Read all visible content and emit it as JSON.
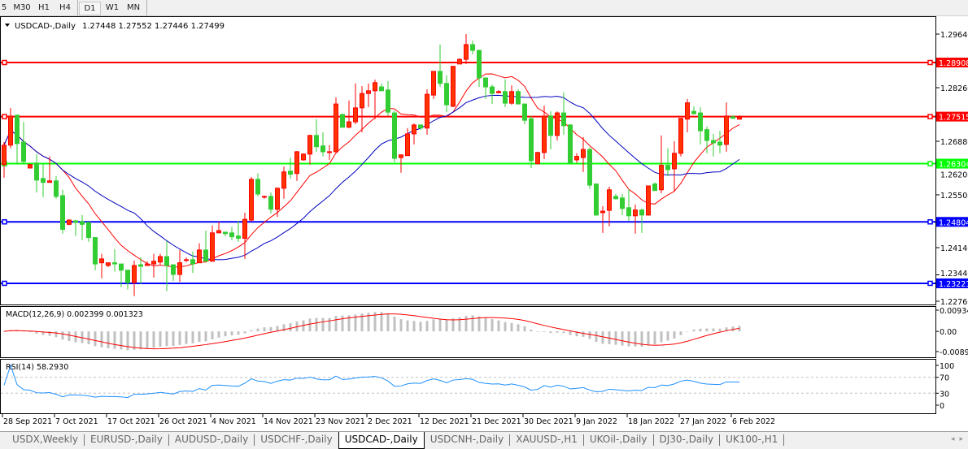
{
  "toolbar": {
    "timeframes": [
      {
        "label": "5"
      },
      {
        "label": "M30"
      },
      {
        "label": "H1"
      },
      {
        "label": "H4"
      },
      {
        "label": "D1",
        "active": true
      },
      {
        "label": "W1"
      },
      {
        "label": "MN"
      }
    ]
  },
  "chart": {
    "symbol_label": "USDCAD-,Daily",
    "ohlc_label": "1.27448 1.27552 1.27446 1.27499",
    "bull_color": "#ff3300",
    "bear_color": "#32cd32",
    "price_ticks": [
      "1.29640",
      "1.28260",
      "1.26880",
      "1.26200",
      "1.25500",
      "1.24140",
      "1.23440",
      "1.22760"
    ],
    "price_tick_values": [
      1.2964,
      1.2826,
      1.2688,
      1.262,
      1.255,
      1.2414,
      1.2344,
      1.2276
    ],
    "price_range": [
      1.2276,
      1.2964
    ],
    "levels": [
      {
        "label": "1.28908",
        "value": 1.28908,
        "color": "#ff0000"
      },
      {
        "label": "1.27515",
        "value": 1.27515,
        "color": "#ff0000"
      },
      {
        "label": "1.26304",
        "value": 1.26304,
        "color": "#00ff00"
      },
      {
        "label": "1.24804",
        "value": 1.24804,
        "color": "#0000ff"
      },
      {
        "label": "1.23221",
        "value": 1.23221,
        "color": "#0000ff"
      }
    ],
    "ma_colors": {
      "fast": "#ff0000",
      "slow": "#0000c0"
    },
    "date_labels": [
      "28 Sep 2021",
      "7 Oct 2021",
      "17 Oct 2021",
      "26 Oct 2021",
      "4 Nov 2021",
      "14 Nov 2021",
      "23 Nov 2021",
      "2 Dec 2021",
      "12 Dec 2021",
      "21 Dec 2021",
      "30 Dec 2021",
      "9 Jan 2022",
      "18 Jan 2022",
      "27 Jan 2022",
      "6 Feb 2022"
    ],
    "candles_ohlc": [
      [
        1.2628,
        1.2686,
        1.2594,
        1.2678
      ],
      [
        1.2678,
        1.2774,
        1.267,
        1.2753
      ],
      [
        1.2755,
        1.2757,
        1.2628,
        1.2682
      ],
      [
        1.2686,
        1.2738,
        1.2628,
        1.2636
      ],
      [
        1.2619,
        1.2628,
        1.2619,
        1.2628
      ],
      [
        1.2632,
        1.2655,
        1.2556,
        1.2588
      ],
      [
        1.2592,
        1.263,
        1.2544,
        1.2582
      ],
      [
        1.2582,
        1.2649,
        1.2582,
        1.2586
      ],
      [
        1.2586,
        1.2598,
        1.254,
        1.2546
      ],
      [
        1.2548,
        1.2563,
        1.245,
        1.2461
      ],
      [
        1.2474,
        1.2487,
        1.2472,
        1.2485
      ],
      [
        1.2483,
        1.2485,
        1.2444,
        1.2479
      ],
      [
        1.2481,
        1.2498,
        1.2433,
        1.2474
      ],
      [
        1.2479,
        1.2479,
        1.2429,
        1.244
      ],
      [
        1.244,
        1.244,
        1.2356,
        1.2372
      ],
      [
        1.2375,
        1.2398,
        1.2335,
        1.2385
      ],
      [
        1.2368,
        1.2375,
        1.2364,
        1.2375
      ],
      [
        1.2375,
        1.241,
        1.2352,
        1.2372
      ],
      [
        1.2372,
        1.2372,
        1.2312,
        1.2356
      ],
      [
        1.2356,
        1.2356,
        1.2306,
        1.2324
      ],
      [
        1.2324,
        1.2381,
        1.2289,
        1.2368
      ],
      [
        1.237,
        1.2389,
        1.232,
        1.2366
      ],
      [
        1.2368,
        1.2379,
        1.2368,
        1.2372
      ],
      [
        1.2372,
        1.2398,
        1.2337,
        1.2379
      ],
      [
        1.2377,
        1.2398,
        1.237,
        1.2391
      ],
      [
        1.2391,
        1.2431,
        1.2302,
        1.2368
      ],
      [
        1.237,
        1.237,
        1.2328,
        1.2345
      ],
      [
        1.2345,
        1.2408,
        1.2326,
        1.2375
      ],
      [
        1.2381,
        1.2389,
        1.2377,
        1.2383
      ],
      [
        1.2383,
        1.2404,
        1.2349,
        1.2372
      ],
      [
        1.2375,
        1.2425,
        1.2375,
        1.2408
      ],
      [
        1.2408,
        1.2458,
        1.2379,
        1.2379
      ],
      [
        1.2379,
        1.2471,
        1.2379,
        1.2452
      ],
      [
        1.2452,
        1.2481,
        1.2452,
        1.2458
      ],
      [
        1.2454,
        1.2454,
        1.2444,
        1.245
      ],
      [
        1.2452,
        1.2467,
        1.2433,
        1.2442
      ],
      [
        1.2444,
        1.2483,
        1.2429,
        1.2438
      ],
      [
        1.2438,
        1.2504,
        1.2385,
        1.2487
      ],
      [
        1.2485,
        1.2596,
        1.2481,
        1.259
      ],
      [
        1.259,
        1.2605,
        1.2546,
        1.2552
      ],
      [
        1.2544,
        1.2548,
        1.254,
        1.2546
      ],
      [
        1.2546,
        1.2556,
        1.2502,
        1.2513
      ],
      [
        1.2513,
        1.2569,
        1.2493,
        1.2567
      ],
      [
        1.2567,
        1.2623,
        1.254,
        1.2609
      ],
      [
        1.2611,
        1.2646,
        1.2592,
        1.2603
      ],
      [
        1.2605,
        1.2663,
        1.2586,
        1.2661
      ],
      [
        1.264,
        1.2657,
        1.2638,
        1.2655
      ],
      [
        1.2655,
        1.2705,
        1.2628,
        1.2703
      ],
      [
        1.2703,
        1.2745,
        1.2661,
        1.2674
      ],
      [
        1.2676,
        1.2711,
        1.2649,
        1.2661
      ],
      [
        1.2659,
        1.2678,
        1.264,
        1.2661
      ],
      [
        1.2661,
        1.2801,
        1.2659,
        1.2784
      ],
      [
        1.2757,
        1.2759,
        1.2724,
        1.2724
      ],
      [
        1.2724,
        1.2793,
        1.2722,
        1.2738
      ],
      [
        1.2738,
        1.2837,
        1.2732,
        1.2774
      ],
      [
        1.2774,
        1.283,
        1.2711,
        1.2811
      ],
      [
        1.2811,
        1.2837,
        1.2776,
        1.2818
      ],
      [
        1.2818,
        1.2847,
        1.2745,
        1.2839
      ],
      [
        1.2828,
        1.2837,
        1.2818,
        1.2818
      ],
      [
        1.282,
        1.2843,
        1.2753,
        1.2763
      ],
      [
        1.2761,
        1.2767,
        1.2634,
        1.2644
      ],
      [
        1.2646,
        1.2653,
        1.2607,
        1.2653
      ],
      [
        1.2651,
        1.2722,
        1.2651,
        1.2707
      ],
      [
        1.2707,
        1.2734,
        1.268,
        1.273
      ],
      [
        1.273,
        1.273,
        1.2718,
        1.2722
      ],
      [
        1.2722,
        1.2822,
        1.2705,
        1.2809
      ],
      [
        1.2807,
        1.2868,
        1.2797,
        1.2868
      ],
      [
        1.2868,
        1.2937,
        1.2828,
        1.2837
      ],
      [
        1.2837,
        1.2858,
        1.2763,
        1.2782
      ],
      [
        1.2778,
        1.2881,
        1.2776,
        1.2881
      ],
      [
        1.2887,
        1.2902,
        1.2887,
        1.2899
      ],
      [
        1.2899,
        1.2964,
        1.2887,
        1.2937
      ],
      [
        1.2937,
        1.2947,
        1.2912,
        1.2922
      ],
      [
        1.2922,
        1.2924,
        1.2828,
        1.2851
      ],
      [
        1.2851,
        1.2851,
        1.2797,
        1.2828
      ],
      [
        1.2828,
        1.2834,
        1.2784,
        1.2811
      ],
      [
        1.2813,
        1.282,
        1.2811,
        1.2816
      ],
      [
        1.2816,
        1.2847,
        1.2776,
        1.2786
      ],
      [
        1.2786,
        1.2832,
        1.2782,
        1.2816
      ],
      [
        1.2816,
        1.2822,
        1.2784,
        1.2784
      ],
      [
        1.2784,
        1.2784,
        1.2732,
        1.2742
      ],
      [
        1.2746,
        1.2753,
        1.2619,
        1.2638
      ],
      [
        1.263,
        1.2661,
        1.2628,
        1.2659
      ],
      [
        1.2659,
        1.278,
        1.2642,
        1.2753
      ],
      [
        1.2753,
        1.2765,
        1.2667,
        1.2703
      ],
      [
        1.2703,
        1.2765,
        1.269,
        1.2761
      ],
      [
        1.2761,
        1.2814,
        1.2705,
        1.2728
      ],
      [
        1.273,
        1.2732,
        1.2632,
        1.2632
      ],
      [
        1.264,
        1.2657,
        1.2632,
        1.2649
      ],
      [
        1.2646,
        1.2699,
        1.2609,
        1.2667
      ],
      [
        1.2667,
        1.2672,
        1.2565,
        1.2575
      ],
      [
        1.2578,
        1.2578,
        1.2496,
        1.2498
      ],
      [
        1.2504,
        1.2521,
        1.2452,
        1.2508
      ],
      [
        1.251,
        1.2571,
        1.2469,
        1.2563
      ],
      [
        1.2546,
        1.2552,
        1.2538,
        1.254
      ],
      [
        1.2542,
        1.2552,
        1.2498,
        1.2515
      ],
      [
        1.2517,
        1.2565,
        1.2483,
        1.2496
      ],
      [
        1.2496,
        1.2525,
        1.245,
        1.2511
      ],
      [
        1.2511,
        1.2515,
        1.2452,
        1.2498
      ],
      [
        1.2498,
        1.2573,
        1.2496,
        1.2573
      ],
      [
        1.2578,
        1.2582,
        1.2561,
        1.2561
      ],
      [
        1.2563,
        1.2703,
        1.2554,
        1.2626
      ],
      [
        1.2626,
        1.267,
        1.2598,
        1.2615
      ],
      [
        1.2617,
        1.2688,
        1.2559,
        1.2657
      ],
      [
        1.2657,
        1.2747,
        1.2649,
        1.2747
      ],
      [
        1.2745,
        1.2797,
        1.2711,
        1.2787
      ],
      [
        1.2765,
        1.2778,
        1.2757,
        1.2759
      ],
      [
        1.2761,
        1.2776,
        1.268,
        1.2715
      ],
      [
        1.2718,
        1.2726,
        1.2657,
        1.269
      ],
      [
        1.269,
        1.2707,
        1.2649,
        1.2684
      ],
      [
        1.2686,
        1.2715,
        1.2657,
        1.2678
      ],
      [
        1.268,
        1.2788,
        1.2661,
        1.2753
      ],
      [
        1.2751,
        1.2755,
        1.2747,
        1.2747
      ],
      [
        1.27448,
        1.27552,
        1.27446,
        1.27499
      ]
    ]
  },
  "macd": {
    "label": "MACD(12,26,9) 0.002399 0.001323",
    "ticks": [
      "0.009345",
      "0.00",
      "-0.00890"
    ],
    "tick_values": [
      0.009345,
      0,
      -0.0089
    ],
    "histogram_color": "#c0c0c0",
    "signal_color": "#ff0000"
  },
  "rsi": {
    "label": "RSI(14) 58.2930",
    "ticks": [
      "100",
      "70",
      "30",
      "0"
    ],
    "tick_values": [
      100,
      70,
      30,
      0
    ],
    "line_color": "#1e90ff"
  },
  "tabs": [
    {
      "label": "USDX,Weekly"
    },
    {
      "label": "EURUSD-,Daily"
    },
    {
      "label": "AUDUSD-,Daily"
    },
    {
      "label": "USDCHF-,Daily"
    },
    {
      "label": "USDCAD-,Daily",
      "active": true
    },
    {
      "label": "USDCNH-,Daily"
    },
    {
      "label": "XAUUSD-,H1"
    },
    {
      "label": "UKOil-,Daily"
    },
    {
      "label": "DJ30-,Daily"
    },
    {
      "label": "UK100-,H1"
    }
  ]
}
